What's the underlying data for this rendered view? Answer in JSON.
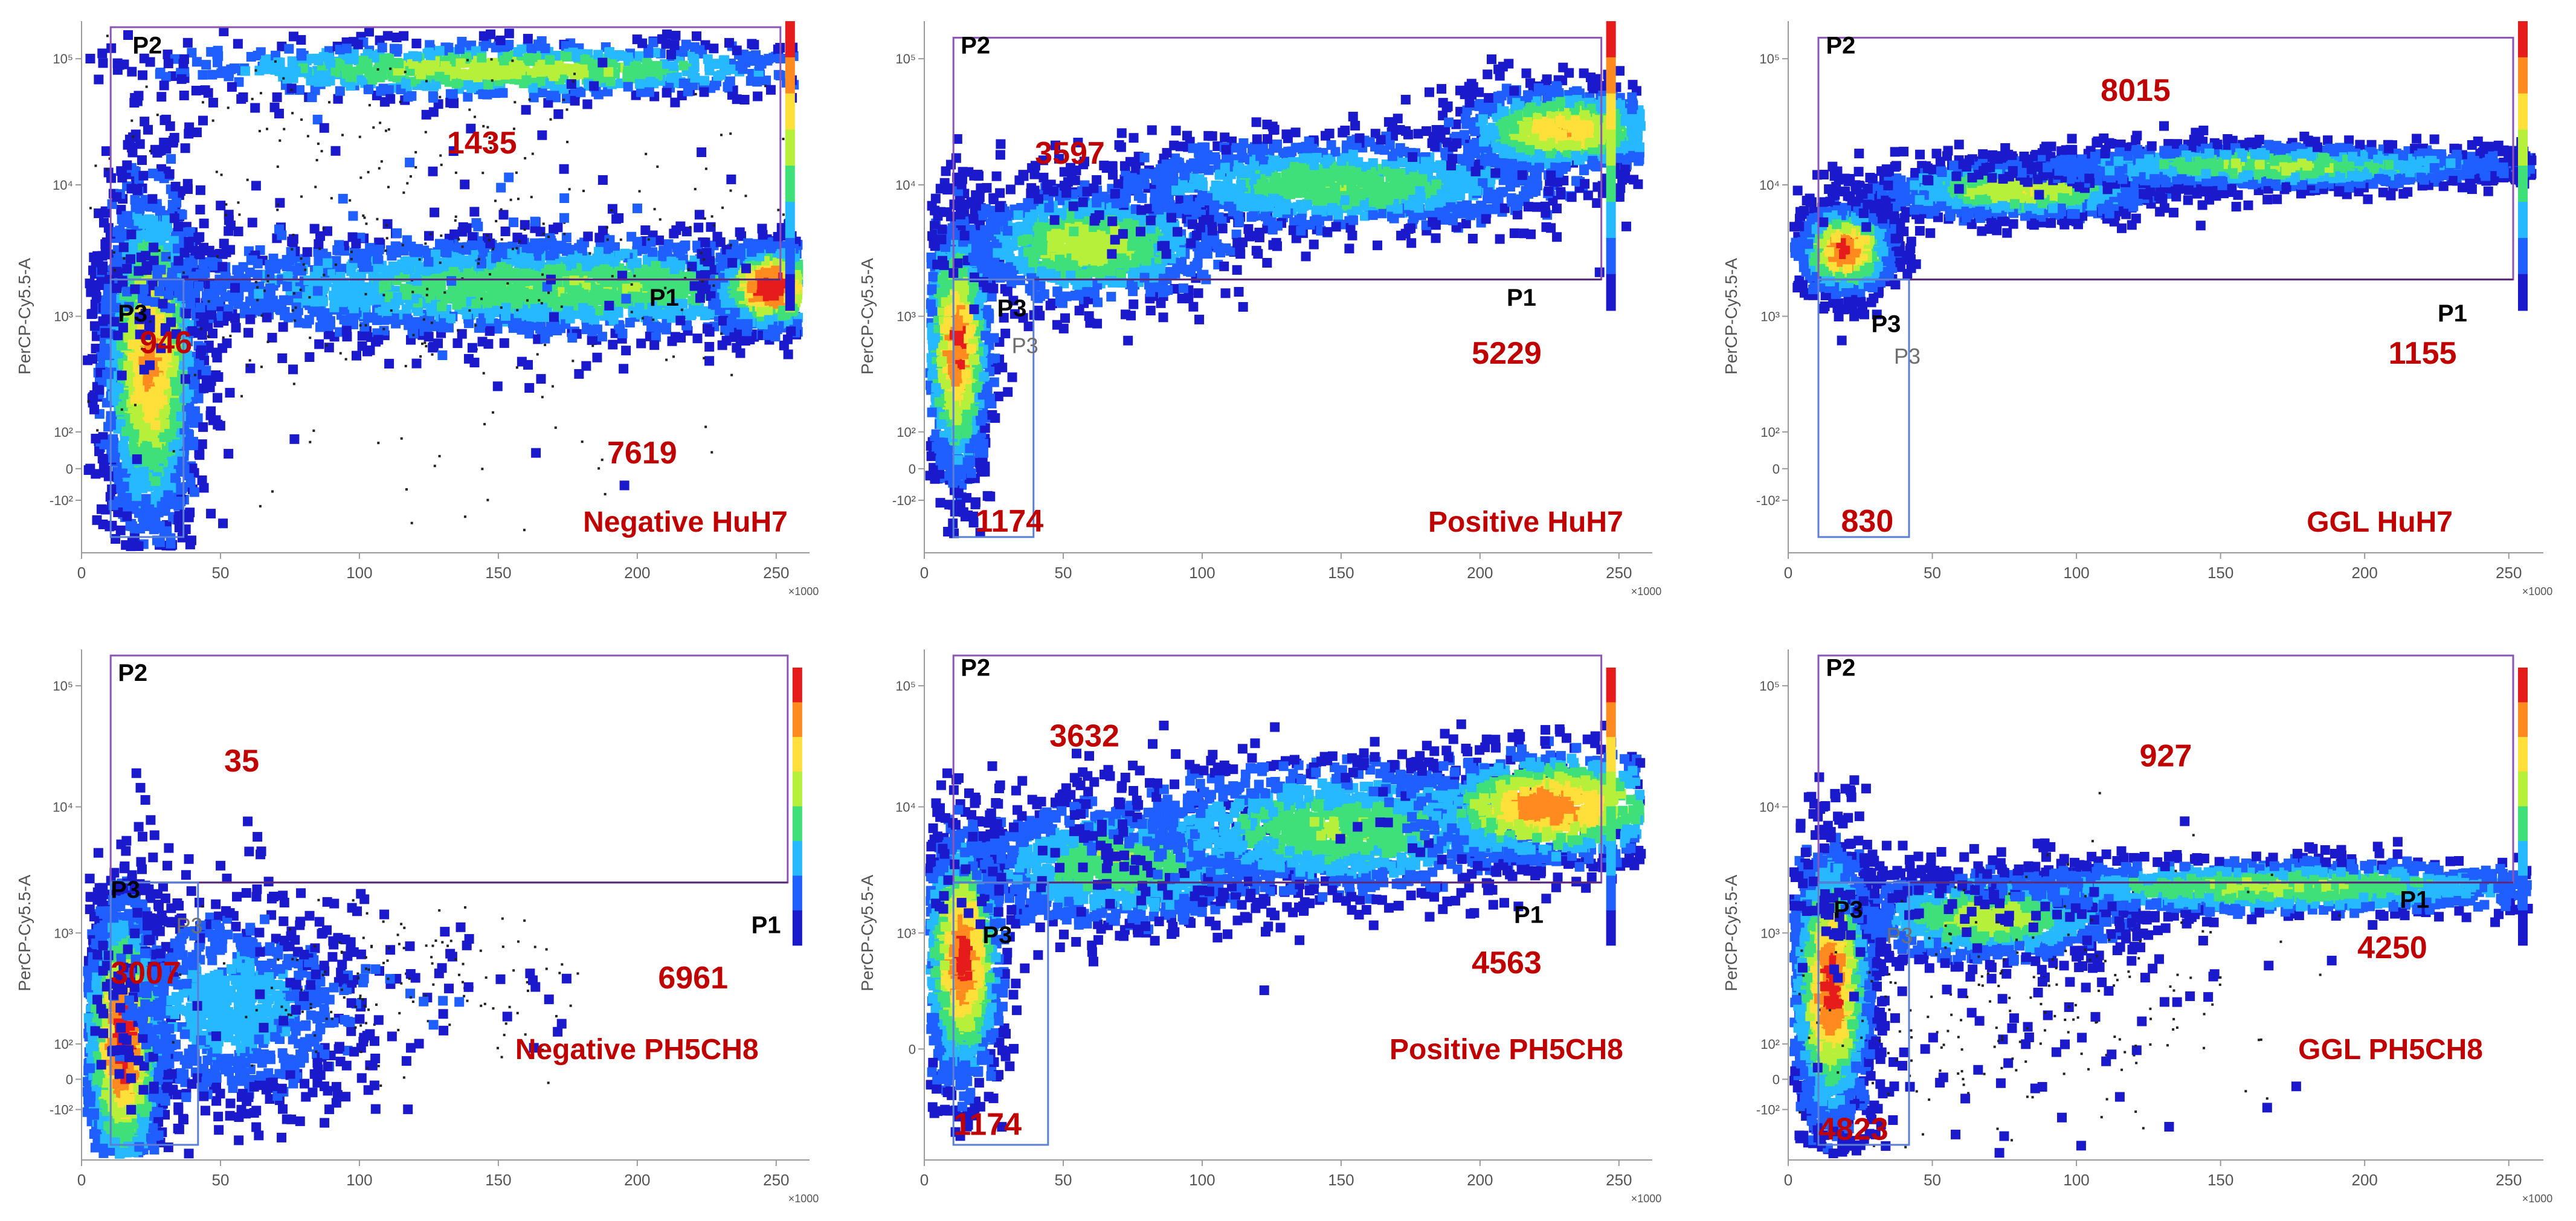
{
  "figure": {
    "x_multiplier": "×1000",
    "colors": {
      "gate_p1": "#5a2a7a",
      "gate_p2": "#8a55b5",
      "gate_p3": "#5b7fd6",
      "count": "#c00000",
      "gate_label": "#000000",
      "axis": "#9a9a9a",
      "tick": "#555555"
    },
    "colormap": [
      "#1a1acc",
      "#1f5fff",
      "#27b9ff",
      "#3fe07a",
      "#b6f03a",
      "#ffe03a",
      "#ff8a1f",
      "#e61b1b"
    ],
    "colorbar_icon": "colorbar-icon"
  },
  "chart_data": [
    {
      "type": "scatter",
      "panel": "top-left",
      "title": "Negative HuH7",
      "ylabel": "PerCP-Cy5.5-A",
      "xlim": [
        0,
        262
      ],
      "x_ticks": [
        "0",
        "50",
        "100",
        "150",
        "200",
        "250"
      ],
      "y_ticks": [
        "10⁵",
        "10⁴",
        "10³",
        "10²",
        "0",
        "-10²"
      ],
      "gates": {
        "P1": {
          "label": "P1",
          "count": "7619"
        },
        "P2": {
          "label": "P2",
          "count": "1435"
        },
        "P3": {
          "label": "P3",
          "count": "946"
        }
      },
      "populations": [
        {
          "x": 25,
          "y": 2.6,
          "sx": 9,
          "sy": 0.75,
          "n": 2200,
          "heat": 0.75
        },
        {
          "x": 150,
          "y": 5.0,
          "sx": 65,
          "sy": 0.12,
          "n": 900,
          "heat": 0.55
        },
        {
          "x": 175,
          "y": 3.2,
          "sx": 85,
          "sy": 0.22,
          "n": 2600,
          "heat": 0.45
        },
        {
          "x": 248,
          "y": 3.2,
          "sx": 10,
          "sy": 0.18,
          "n": 800,
          "heat": 0.95
        },
        {
          "x": 120,
          "y": 3.6,
          "sx": 80,
          "sy": 0.9,
          "n": 450,
          "heat": 0.12
        }
      ]
    },
    {
      "type": "scatter",
      "panel": "top-middle",
      "title": "Positive HuH7",
      "ylabel": "PerCP-Cy5.5-A",
      "xlim": [
        0,
        262
      ],
      "x_ticks": [
        "0",
        "50",
        "100",
        "150",
        "200",
        "250"
      ],
      "y_ticks": [
        "10⁵",
        "10⁴",
        "10³",
        "10²",
        "0",
        "-10²"
      ],
      "gates": {
        "P1": {
          "label": "P1",
          "count": "5229"
        },
        "P2": {
          "label": "P2",
          "count": "3597"
        },
        "P3": {
          "label": "P3",
          "count": "1174",
          "ghost": "P3"
        }
      },
      "populations": [
        {
          "x": 12,
          "y": 2.7,
          "sx": 6,
          "sy": 0.55,
          "n": 1400,
          "heat": 0.85
        },
        {
          "x": 60,
          "y": 3.55,
          "sx": 25,
          "sy": 0.25,
          "n": 1000,
          "heat": 0.55
        },
        {
          "x": 150,
          "y": 4.05,
          "sx": 45,
          "sy": 0.2,
          "n": 1300,
          "heat": 0.45
        },
        {
          "x": 230,
          "y": 4.5,
          "sx": 20,
          "sy": 0.18,
          "n": 900,
          "heat": 0.7
        }
      ]
    },
    {
      "type": "scatter",
      "panel": "top-right",
      "title": "GGL HuH7",
      "ylabel": "PerCP-Cy5.5-A",
      "xlim": [
        0,
        262
      ],
      "x_ticks": [
        "0",
        "50",
        "100",
        "150",
        "200",
        "250"
      ],
      "y_ticks": [
        "10⁵",
        "10⁴",
        "10³",
        "10²",
        "0",
        "-10²"
      ],
      "gates": {
        "P1": {
          "label": "P1",
          "count": "1155"
        },
        "P2": {
          "label": "P2",
          "count": "8015"
        },
        "P3": {
          "label": "P3",
          "count": "830",
          "ghost": "P3"
        }
      },
      "populations": [
        {
          "x": 20,
          "y": 3.5,
          "sx": 8,
          "sy": 0.18,
          "n": 1500,
          "heat": 0.9
        },
        {
          "x": 80,
          "y": 4.0,
          "sx": 25,
          "sy": 0.12,
          "n": 1400,
          "heat": 0.6
        },
        {
          "x": 170,
          "y": 4.2,
          "sx": 45,
          "sy": 0.09,
          "n": 1800,
          "heat": 0.5
        }
      ]
    },
    {
      "type": "scatter",
      "panel": "bottom-left",
      "title": "Negative PH5CH8",
      "ylabel": "PerCP-Cy5.5-A",
      "xlim": [
        0,
        262
      ],
      "x_ticks": [
        "0",
        "50",
        "100",
        "150",
        "200",
        "250"
      ],
      "y_ticks": [
        "10⁵",
        "10⁴",
        "10³",
        "10²",
        "0",
        "-10²"
      ],
      "gates": {
        "P1": {
          "label": "P1",
          "count": "6961"
        },
        "P2": {
          "label": "P2",
          "count": "35"
        },
        "P3": {
          "label": "P3",
          "count": "3007",
          "ghost": "P3"
        }
      },
      "populations": [
        {
          "x": 15,
          "y": 2.0,
          "sx": 7,
          "sy": 0.6,
          "n": 2600,
          "heat": 0.95
        },
        {
          "x": 55,
          "y": 2.3,
          "sx": 25,
          "sy": 0.45,
          "n": 900,
          "heat": 0.3
        },
        {
          "x": 110,
          "y": 2.5,
          "sx": 30,
          "sy": 0.35,
          "n": 200,
          "heat": 0.1
        }
      ]
    },
    {
      "type": "scatter",
      "panel": "bottom-middle",
      "title": "Positive PH5CH8",
      "ylabel": "PerCP-Cy5.5-A",
      "xlim": [
        0,
        262
      ],
      "x_ticks": [
        "0",
        "50",
        "100",
        "150",
        "200",
        "250"
      ],
      "y_ticks": [
        "10⁵",
        "10⁴",
        "10³",
        "0"
      ],
      "gates": {
        "P1": {
          "label": "P1",
          "count": "4563"
        },
        "P2": {
          "label": "P2",
          "count": "3632"
        },
        "P3": {
          "label": "P3",
          "count": "1174"
        }
      },
      "populations": [
        {
          "x": 14,
          "y": 2.75,
          "sx": 7,
          "sy": 0.55,
          "n": 1500,
          "heat": 0.9
        },
        {
          "x": 70,
          "y": 3.55,
          "sx": 30,
          "sy": 0.3,
          "n": 1000,
          "heat": 0.45
        },
        {
          "x": 150,
          "y": 3.85,
          "sx": 45,
          "sy": 0.3,
          "n": 1400,
          "heat": 0.45
        },
        {
          "x": 225,
          "y": 4.05,
          "sx": 25,
          "sy": 0.25,
          "n": 900,
          "heat": 0.8
        }
      ]
    },
    {
      "type": "scatter",
      "panel": "bottom-right",
      "title": "GGL PH5CH8",
      "ylabel": "PerCP-Cy5.5-A",
      "xlim": [
        0,
        262
      ],
      "x_ticks": [
        "0",
        "50",
        "100",
        "150",
        "200",
        "250"
      ],
      "y_ticks": [
        "10⁵",
        "10⁴",
        "10³",
        "10²",
        "0",
        "-10²"
      ],
      "gates": {
        "P1": {
          "label": "P1",
          "count": "4250"
        },
        "P2": {
          "label": "P2",
          "count": "927"
        },
        "P3": {
          "label": "P3",
          "count": "4823",
          "ghost": "P3"
        }
      },
      "populations": [
        {
          "x": 15,
          "y": 2.5,
          "sx": 7,
          "sy": 0.6,
          "n": 2200,
          "heat": 0.9
        },
        {
          "x": 70,
          "y": 3.1,
          "sx": 25,
          "sy": 0.2,
          "n": 1000,
          "heat": 0.55
        },
        {
          "x": 170,
          "y": 3.35,
          "sx": 55,
          "sy": 0.12,
          "n": 1300,
          "heat": 0.5
        },
        {
          "x": 80,
          "y": 2.3,
          "sx": 40,
          "sy": 0.6,
          "n": 300,
          "heat": 0.05
        }
      ]
    }
  ]
}
